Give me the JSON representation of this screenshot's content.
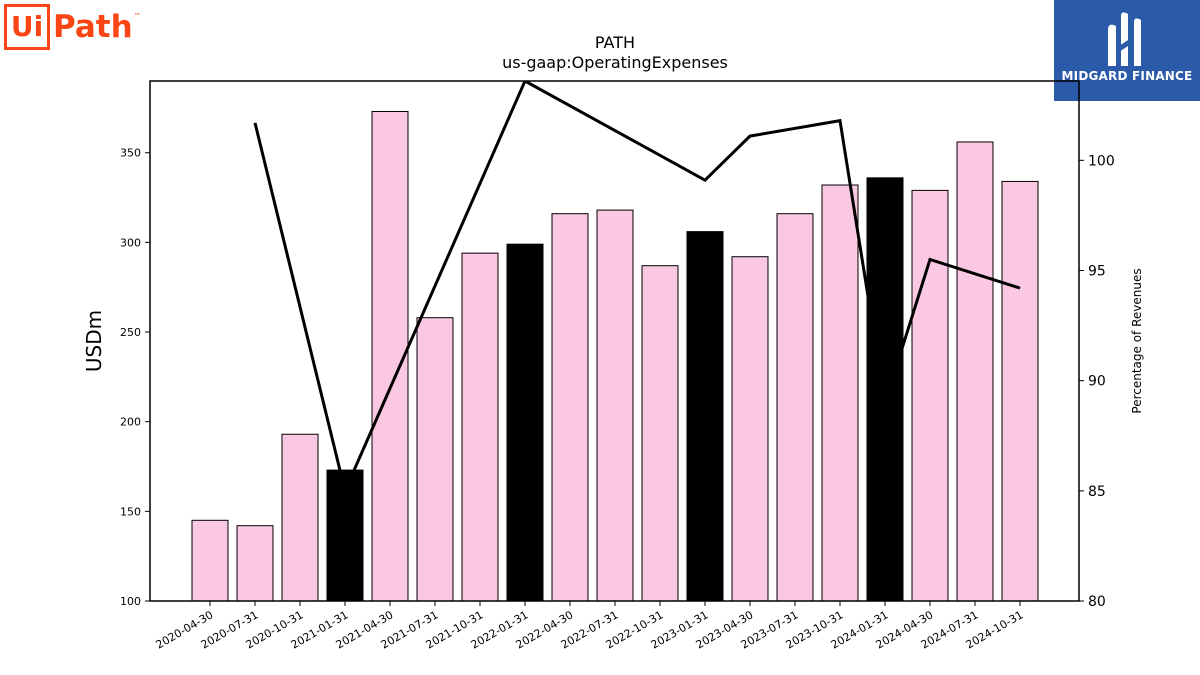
{
  "logos": {
    "left_brand": "UiPath",
    "left_ui": "Ui",
    "left_path": "Path",
    "left_tm": "™",
    "right_brand": "MIDGARD FINANCE"
  },
  "colors": {
    "bar_default": "#fbc8e4",
    "bar_highlight": "#000000",
    "line": "#000000",
    "brand_orange": "#fa4616",
    "midgard_blue": "#2b5aa8"
  },
  "chart_data": {
    "type": "bar",
    "title": "PATH",
    "subtitle": "us-gaap:OperatingExpenses",
    "ylabel": "USDm",
    "y2label": "Percentage of Revenues",
    "ylim": [
      100,
      390
    ],
    "y2lim": [
      80,
      103.6
    ],
    "yticks": [
      100,
      150,
      200,
      250,
      300,
      350
    ],
    "y2ticks": [
      80,
      85,
      90,
      95,
      100
    ],
    "grid": false,
    "categories": [
      "2020-04-30",
      "2020-07-31",
      "2020-10-31",
      "2021-01-31",
      "2021-04-30",
      "2021-07-31",
      "2021-10-31",
      "2022-01-31",
      "2022-04-30",
      "2022-07-31",
      "2022-10-31",
      "2023-01-31",
      "2023-04-30",
      "2023-07-31",
      "2023-10-31",
      "2024-01-31",
      "2024-04-30",
      "2024-07-31",
      "2024-10-31"
    ],
    "series": [
      {
        "type": "bar",
        "axis": "left",
        "values": [
          145,
          142,
          193,
          173,
          373,
          258,
          294,
          299,
          316,
          318,
          287,
          306,
          292,
          316,
          332,
          336,
          329,
          356,
          334
        ],
        "highlight": [
          false,
          false,
          false,
          true,
          false,
          false,
          false,
          true,
          false,
          false,
          false,
          true,
          false,
          false,
          false,
          true,
          false,
          false,
          false
        ]
      },
      {
        "type": "line",
        "axis": "right",
        "values": [
          null,
          101.7,
          null,
          85.0,
          null,
          null,
          null,
          103.6,
          null,
          null,
          null,
          99.1,
          101.1,
          null,
          101.8,
          89.0,
          95.5,
          null,
          94.2
        ]
      }
    ]
  }
}
